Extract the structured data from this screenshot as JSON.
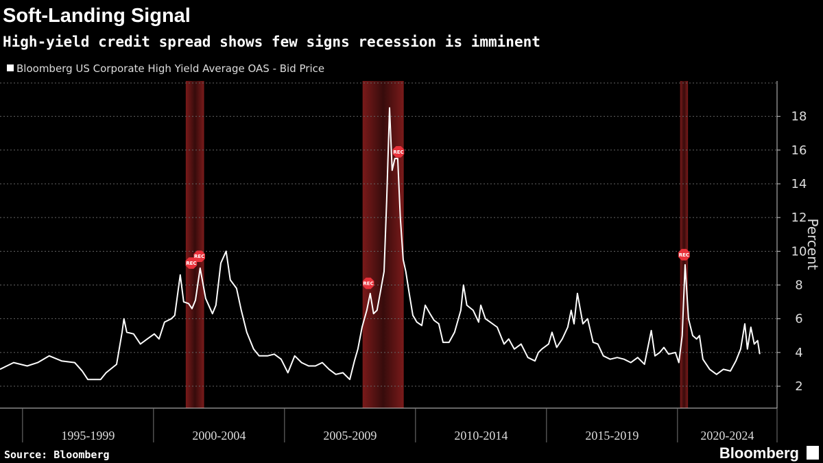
{
  "chart_data": {
    "type": "line",
    "title": "Soft-Landing Signal",
    "subtitle": "High-yield credit spread shows few signs recession is imminent",
    "y_label": "Percent",
    "source": "Source: Bloomberg",
    "brand": "Bloomberg",
    "xlim": [
      1994.14,
      2023.8
    ],
    "xticks": [
      1995,
      2000,
      2005,
      2010,
      2015,
      2020
    ],
    "x_period_labels": [
      "1995-1999",
      "2000-2004",
      "2005-2009",
      "2010-2014",
      "2015-2019",
      "2020-2024"
    ],
    "ylim": [
      0.7,
      20.1
    ],
    "yticks": [
      2,
      4,
      6,
      8,
      10,
      12,
      14,
      16,
      18
    ],
    "grid": true,
    "recession_color": "#7a1a1a",
    "recessions": [
      [
        2001.23,
        2001.93
      ],
      [
        2007.98,
        2009.55
      ],
      [
        2020.1,
        2020.4
      ]
    ],
    "recession_markers": [
      {
        "label": "REC",
        "x": 2001.44,
        "y": 9.3
      },
      {
        "label": "REC",
        "x": 2001.75,
        "y": 9.7
      },
      {
        "label": "REC",
        "x": 2008.2,
        "y": 8.1
      },
      {
        "label": "REC",
        "x": 2009.35,
        "y": 15.9
      },
      {
        "label": "REC",
        "x": 2020.25,
        "y": 9.8
      }
    ],
    "x": [
      1994.14,
      1994.66,
      1995.18,
      1995.58,
      1996.02,
      1996.49,
      1996.99,
      1997.28,
      1997.49,
      1997.98,
      1998.19,
      1998.59,
      1998.8,
      1998.87,
      1998.98,
      1999.24,
      1999.5,
      1999.76,
      2000.03,
      2000.21,
      2000.42,
      2000.68,
      2000.81,
      2001.02,
      2001.15,
      2001.34,
      2001.47,
      2001.6,
      2001.78,
      2001.99,
      2002.25,
      2002.38,
      2002.57,
      2002.77,
      2002.93,
      2003.17,
      2003.35,
      2003.56,
      2003.82,
      2004.03,
      2004.35,
      2004.61,
      2004.87,
      2005.13,
      2005.39,
      2005.65,
      2005.92,
      2006.18,
      2006.44,
      2006.7,
      2006.96,
      2007.23,
      2007.49,
      2007.67,
      2007.8,
      2007.96,
      2008.14,
      2008.27,
      2008.4,
      2008.53,
      2008.66,
      2008.8,
      2008.9,
      2009.01,
      2009.11,
      2009.21,
      2009.32,
      2009.42,
      2009.53,
      2009.63,
      2009.76,
      2009.9,
      2010.05,
      2010.24,
      2010.37,
      2010.55,
      2010.71,
      2010.89,
      2011.05,
      2011.28,
      2011.49,
      2011.73,
      2011.83,
      2011.96,
      2012.2,
      2012.41,
      2012.49,
      2012.67,
      2012.85,
      2013.12,
      2013.38,
      2013.56,
      2013.77,
      2014.03,
      2014.29,
      2014.56,
      2014.69,
      2014.82,
      2015.08,
      2015.21,
      2015.39,
      2015.6,
      2015.81,
      2015.94,
      2016.05,
      2016.18,
      2016.39,
      2016.57,
      2016.78,
      2016.96,
      2017.17,
      2017.43,
      2017.7,
      2017.96,
      2018.22,
      2018.48,
      2018.74,
      2019.0,
      2019.14,
      2019.32,
      2019.48,
      2019.66,
      2019.92,
      2020.05,
      2020.18,
      2020.29,
      2020.42,
      2020.58,
      2020.73,
      2020.84,
      2020.97,
      2021.23,
      2021.49,
      2021.75,
      2022.02,
      2022.23,
      2022.41,
      2022.57,
      2022.67,
      2022.8,
      2022.93,
      2023.06,
      2023.14
    ],
    "series": [
      {
        "name": "Bloomberg US Corporate High Yield Average OAS - Bid Price",
        "color": "#ffffff",
        "values": [
          3.0,
          3.4,
          3.2,
          3.4,
          3.8,
          3.5,
          3.4,
          2.9,
          2.4,
          2.4,
          2.8,
          3.3,
          5.2,
          6.0,
          5.2,
          5.1,
          4.5,
          4.8,
          5.1,
          4.8,
          5.8,
          6.0,
          6.2,
          8.6,
          7.0,
          6.9,
          6.6,
          7.1,
          9.0,
          7.2,
          6.3,
          6.8,
          9.3,
          10.0,
          8.3,
          7.8,
          6.5,
          5.2,
          4.2,
          3.8,
          3.8,
          3.9,
          3.6,
          2.8,
          3.8,
          3.4,
          3.2,
          3.2,
          3.4,
          3.0,
          2.7,
          2.8,
          2.4,
          3.5,
          4.2,
          5.5,
          6.5,
          7.5,
          6.3,
          6.5,
          7.6,
          8.8,
          13.0,
          18.5,
          14.8,
          15.5,
          15.5,
          12.0,
          9.5,
          8.8,
          7.5,
          6.2,
          5.8,
          5.6,
          6.8,
          6.3,
          5.9,
          5.7,
          4.6,
          4.6,
          5.2,
          6.5,
          8.0,
          6.8,
          6.5,
          5.8,
          6.8,
          6.0,
          5.8,
          5.5,
          4.5,
          4.8,
          4.2,
          4.5,
          3.7,
          3.5,
          4.0,
          4.2,
          4.5,
          5.2,
          4.3,
          4.8,
          5.5,
          6.5,
          5.7,
          7.5,
          5.7,
          6.0,
          4.6,
          4.5,
          3.8,
          3.6,
          3.7,
          3.6,
          3.4,
          3.7,
          3.3,
          5.3,
          3.8,
          4.0,
          4.3,
          3.9,
          4.0,
          3.4,
          5.0,
          9.2,
          6.0,
          5.0,
          4.8,
          5.0,
          3.6,
          3.0,
          2.7,
          3.0,
          2.9,
          3.5,
          4.2,
          5.7,
          4.2,
          5.5,
          4.5,
          4.7,
          3.9
        ]
      }
    ]
  }
}
